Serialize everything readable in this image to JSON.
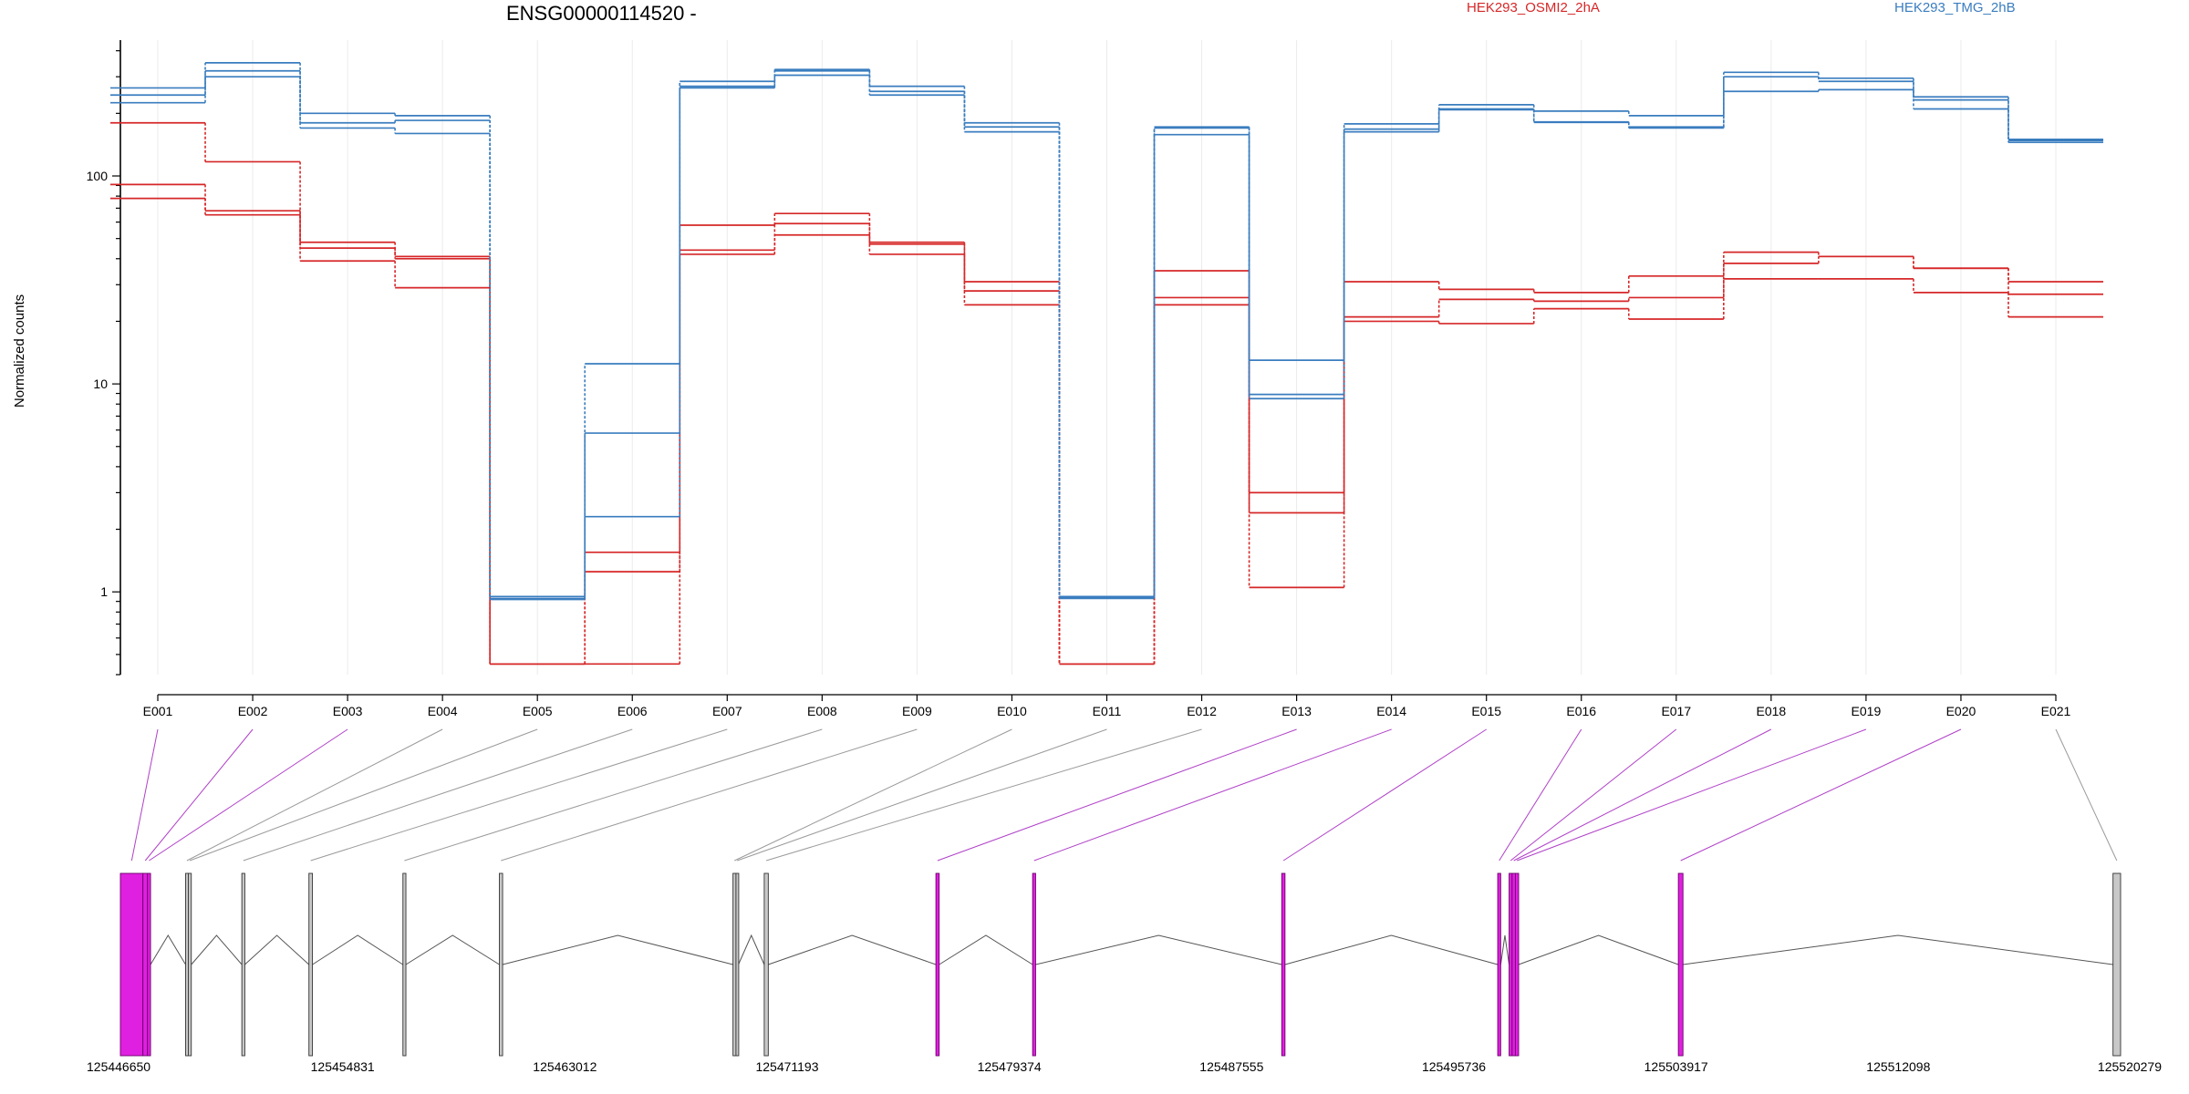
{
  "title": "ENSG00000114520 -",
  "legend": [
    {
      "label": "HEK293_OSMI2_2hA",
      "color": "#d62728"
    },
    {
      "label": "HEK293_TMG_2hB",
      "color": "#3a7dbf"
    }
  ],
  "chart_data": {
    "type": "line",
    "ylabel": "Normalized counts",
    "yscale": "log",
    "ylim": [
      0.4,
      450
    ],
    "yticks": [
      {
        "value": 1,
        "label": "1"
      },
      {
        "value": 10,
        "label": "10"
      },
      {
        "value": 100,
        "label": "100"
      }
    ],
    "categories": [
      "E001",
      "E002",
      "E003",
      "E004",
      "E005",
      "E006",
      "E007",
      "E008",
      "E009",
      "E010",
      "E011",
      "E012",
      "E013",
      "E014",
      "E015",
      "E016",
      "E017",
      "E018",
      "E019",
      "E020",
      "E021"
    ],
    "series": [
      {
        "group": "HEK293_OSMI2_2hA",
        "color": "#d62728",
        "values": [
          180,
          117,
          48,
          41,
          0.45,
          1.55,
          58,
          66,
          48,
          31,
          0.45,
          35,
          3.0,
          31,
          28.5,
          27.5,
          33,
          43,
          41,
          36,
          31
        ]
      },
      {
        "group": "HEK293_OSMI2_2hA",
        "color": "#d62728",
        "values": [
          91,
          68,
          45,
          40,
          0.45,
          1.25,
          44,
          59,
          47,
          28,
          0.45,
          26,
          2.4,
          21,
          25.5,
          25,
          26,
          38,
          41,
          36,
          27
        ]
      },
      {
        "group": "HEK293_OSMI2_2hA",
        "color": "#d62728",
        "values": [
          78,
          65,
          39,
          29,
          0.45,
          0.45,
          42,
          52,
          42,
          24,
          0.45,
          24,
          1.05,
          20,
          19.5,
          23,
          20.5,
          32,
          32,
          27.5,
          21
        ]
      },
      {
        "group": "HEK293_TMG_2hB",
        "color": "#3a7dbf",
        "values": [
          265,
          350,
          200,
          195,
          0.95,
          12.5,
          285,
          325,
          270,
          180,
          0.95,
          172,
          13,
          178,
          220,
          205,
          195,
          315,
          295,
          240,
          150
        ]
      },
      {
        "group": "HEK293_TMG_2hB",
        "color": "#3a7dbf",
        "values": [
          245,
          320,
          180,
          185,
          0.93,
          5.8,
          270,
          320,
          255,
          172,
          0.94,
          170,
          8.9,
          168,
          210,
          182,
          172,
          300,
          285,
          232,
          148
        ]
      },
      {
        "group": "HEK293_TMG_2hB",
        "color": "#3a7dbf",
        "values": [
          225,
          300,
          170,
          160,
          0.92,
          2.3,
          265,
          305,
          245,
          163,
          0.93,
          158,
          8.5,
          163,
          208,
          181,
          170,
          255,
          260,
          210,
          145
        ]
      }
    ]
  },
  "gene_model": {
    "coord_min": 125446650,
    "coord_max": 125520279,
    "axis_ticks": [
      "125446650",
      "125454831",
      "125463012",
      "125471193",
      "125479374",
      "125487555",
      "125495736",
      "125503917",
      "125512098",
      "125520279"
    ],
    "highlight_color": "#e020e0",
    "normal_color": "#c8c8c8",
    "exons": [
      {
        "id": "E001",
        "start": 125446650,
        "end": 125447480,
        "diff": true
      },
      {
        "id": "E002",
        "start": 125447480,
        "end": 125447650,
        "diff": true
      },
      {
        "id": "E003",
        "start": 125447650,
        "end": 125447760,
        "diff": true
      },
      {
        "id": "E004",
        "start": 125449050,
        "end": 125449150,
        "diff": false
      },
      {
        "id": "E005",
        "start": 125449150,
        "end": 125449260,
        "diff": false
      },
      {
        "id": "E006",
        "start": 125451120,
        "end": 125451230,
        "diff": false
      },
      {
        "id": "E007",
        "start": 125453590,
        "end": 125453720,
        "diff": false
      },
      {
        "id": "E008",
        "start": 125457050,
        "end": 125457160,
        "diff": false
      },
      {
        "id": "E009",
        "start": 125460600,
        "end": 125460720,
        "diff": false
      },
      {
        "id": "E010",
        "start": 125469200,
        "end": 125469310,
        "diff": false
      },
      {
        "id": "E011",
        "start": 125469310,
        "end": 125469400,
        "diff": false
      },
      {
        "id": "E012",
        "start": 125470350,
        "end": 125470500,
        "diff": false
      },
      {
        "id": "E013",
        "start": 125476670,
        "end": 125476790,
        "diff": true
      },
      {
        "id": "E014",
        "start": 125480230,
        "end": 125480340,
        "diff": true
      },
      {
        "id": "E015",
        "start": 125489400,
        "end": 125489520,
        "diff": true
      },
      {
        "id": "E016",
        "start": 125497350,
        "end": 125497460,
        "diff": true
      },
      {
        "id": "E017",
        "start": 125497770,
        "end": 125497880,
        "diff": true
      },
      {
        "id": "E018",
        "start": 125497880,
        "end": 125498000,
        "diff": true
      },
      {
        "id": "E019",
        "start": 125498000,
        "end": 125498120,
        "diff": true
      },
      {
        "id": "E020",
        "start": 125504000,
        "end": 125504170,
        "diff": true
      },
      {
        "id": "E021",
        "start": 125520000,
        "end": 125520279,
        "diff": false
      }
    ]
  }
}
